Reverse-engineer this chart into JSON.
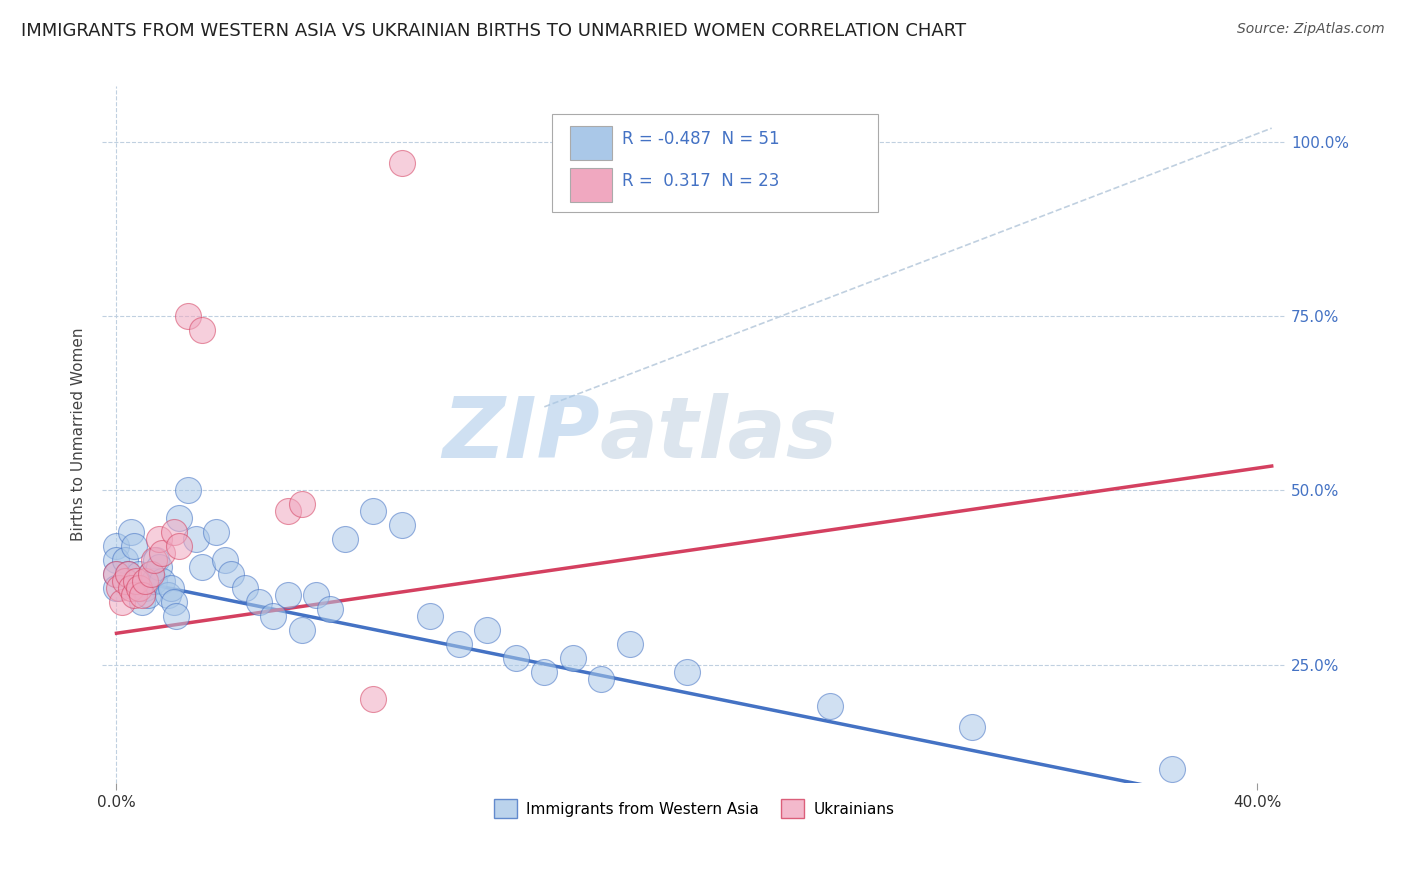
{
  "title": "IMMIGRANTS FROM WESTERN ASIA VS UKRAINIAN BIRTHS TO UNMARRIED WOMEN CORRELATION CHART",
  "source": "Source: ZipAtlas.com",
  "ylabel": "Births to Unmarried Women",
  "x_tick_labels_bottom": [
    "0.0%",
    "40.0%"
  ],
  "x_tick_values_bottom": [
    0.0,
    0.4
  ],
  "y_tick_values": [
    0.25,
    0.5,
    0.75,
    1.0
  ],
  "y_right_labels": [
    "25.0%",
    "50.0%",
    "75.0%",
    "100.0%"
  ],
  "xlim": [
    -0.005,
    0.41
  ],
  "ylim": [
    0.08,
    1.08
  ],
  "legend_labels": [
    "Immigrants from Western Asia",
    "Ukrainians"
  ],
  "R_blue": -0.487,
  "N_blue": 51,
  "R_pink": 0.317,
  "N_pink": 23,
  "watermark_zip": "ZIP",
  "watermark_atlas": "atlas",
  "blue_color": "#aac8e8",
  "pink_color": "#f0a8c0",
  "blue_line_color": "#4472c4",
  "pink_line_color": "#d44060",
  "blue_line_x": [
    0.0,
    0.405
  ],
  "blue_line_y": [
    0.375,
    0.04
  ],
  "pink_line_x": [
    0.0,
    0.405
  ],
  "pink_line_y": [
    0.295,
    0.535
  ],
  "dashed_line_x": [
    0.15,
    0.405
  ],
  "dashed_line_y": [
    0.62,
    1.02
  ],
  "scatter_blue": [
    [
      0.0,
      0.42
    ],
    [
      0.0,
      0.4
    ],
    [
      0.0,
      0.38
    ],
    [
      0.0,
      0.36
    ],
    [
      0.003,
      0.4
    ],
    [
      0.004,
      0.38
    ],
    [
      0.005,
      0.44
    ],
    [
      0.006,
      0.42
    ],
    [
      0.007,
      0.36
    ],
    [
      0.008,
      0.38
    ],
    [
      0.009,
      0.34
    ],
    [
      0.01,
      0.36
    ],
    [
      0.011,
      0.35
    ],
    [
      0.012,
      0.38
    ],
    [
      0.013,
      0.37
    ],
    [
      0.014,
      0.4
    ],
    [
      0.015,
      0.39
    ],
    [
      0.016,
      0.37
    ],
    [
      0.018,
      0.35
    ],
    [
      0.019,
      0.36
    ],
    [
      0.02,
      0.34
    ],
    [
      0.021,
      0.32
    ],
    [
      0.022,
      0.46
    ],
    [
      0.025,
      0.5
    ],
    [
      0.028,
      0.43
    ],
    [
      0.03,
      0.39
    ],
    [
      0.035,
      0.44
    ],
    [
      0.038,
      0.4
    ],
    [
      0.04,
      0.38
    ],
    [
      0.045,
      0.36
    ],
    [
      0.05,
      0.34
    ],
    [
      0.055,
      0.32
    ],
    [
      0.06,
      0.35
    ],
    [
      0.065,
      0.3
    ],
    [
      0.07,
      0.35
    ],
    [
      0.075,
      0.33
    ],
    [
      0.08,
      0.43
    ],
    [
      0.09,
      0.47
    ],
    [
      0.1,
      0.45
    ],
    [
      0.11,
      0.32
    ],
    [
      0.12,
      0.28
    ],
    [
      0.13,
      0.3
    ],
    [
      0.14,
      0.26
    ],
    [
      0.15,
      0.24
    ],
    [
      0.16,
      0.26
    ],
    [
      0.17,
      0.23
    ],
    [
      0.18,
      0.28
    ],
    [
      0.2,
      0.24
    ],
    [
      0.25,
      0.19
    ],
    [
      0.3,
      0.16
    ],
    [
      0.37,
      0.1
    ]
  ],
  "scatter_pink": [
    [
      0.0,
      0.38
    ],
    [
      0.001,
      0.36
    ],
    [
      0.002,
      0.34
    ],
    [
      0.003,
      0.37
    ],
    [
      0.004,
      0.38
    ],
    [
      0.005,
      0.36
    ],
    [
      0.006,
      0.35
    ],
    [
      0.007,
      0.37
    ],
    [
      0.008,
      0.36
    ],
    [
      0.009,
      0.35
    ],
    [
      0.01,
      0.37
    ],
    [
      0.012,
      0.38
    ],
    [
      0.013,
      0.4
    ],
    [
      0.015,
      0.43
    ],
    [
      0.016,
      0.41
    ],
    [
      0.02,
      0.44
    ],
    [
      0.022,
      0.42
    ],
    [
      0.025,
      0.75
    ],
    [
      0.03,
      0.73
    ],
    [
      0.06,
      0.47
    ],
    [
      0.065,
      0.48
    ],
    [
      0.09,
      0.2
    ],
    [
      0.1,
      0.97
    ]
  ],
  "bg_color": "#ffffff",
  "grid_color": "#c0d0e0",
  "title_fontsize": 13,
  "axis_label_fontsize": 11,
  "tick_fontsize": 11,
  "source_fontsize": 10,
  "legend_fontsize": 12
}
